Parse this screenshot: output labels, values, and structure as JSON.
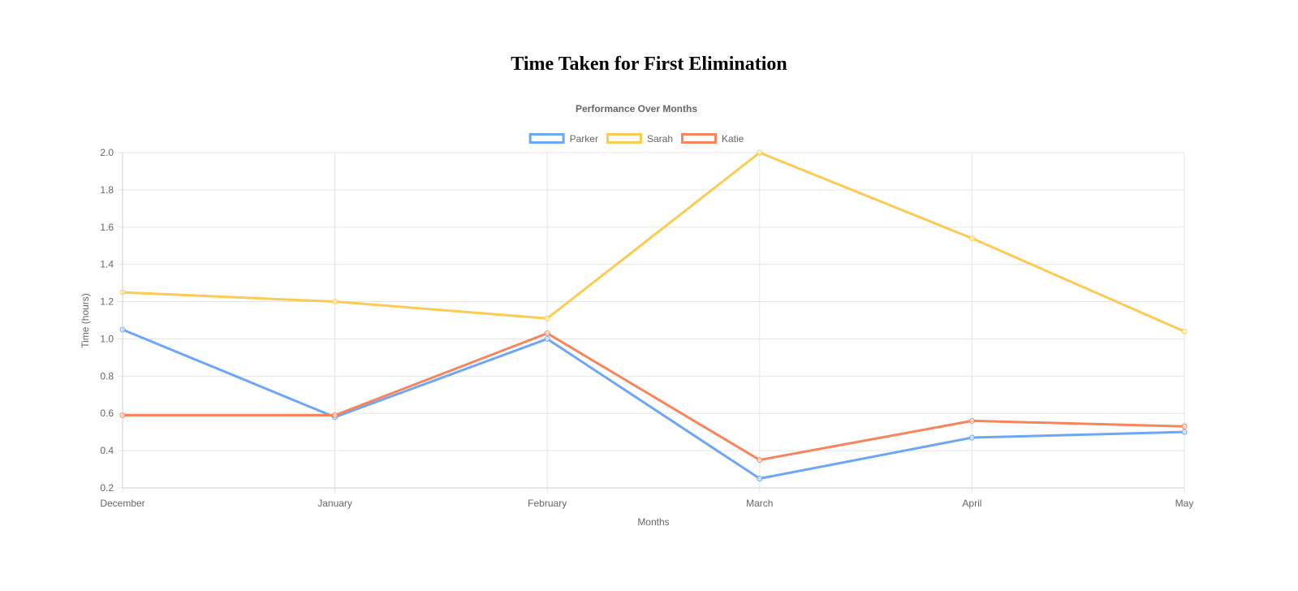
{
  "page": {
    "title": "Time Taken for First Elimination"
  },
  "chart_data": {
    "type": "line",
    "subtitle": "Performance Over Months",
    "xlabel": "Months",
    "ylabel": "Time (hours)",
    "categories": [
      "December",
      "January",
      "February",
      "March",
      "April",
      "May"
    ],
    "ylim": [
      0.2,
      2.0
    ],
    "yticks": [
      "2.0",
      "1.8",
      "1.6",
      "1.4",
      "1.2",
      "1.0",
      "0.8",
      "0.6",
      "0.4",
      "0.2"
    ],
    "grid": true,
    "legend_position": "top-center",
    "series": [
      {
        "name": "Parker",
        "color": "#6ea6f7",
        "values": [
          1.05,
          0.58,
          1.0,
          0.25,
          0.47,
          0.5
        ]
      },
      {
        "name": "Sarah",
        "color": "#fccb52",
        "values": [
          1.25,
          1.2,
          1.11,
          2.0,
          1.54,
          1.04
        ]
      },
      {
        "name": "Katie",
        "color": "#f7845a",
        "values": [
          0.59,
          0.59,
          1.03,
          0.35,
          0.56,
          0.53
        ]
      }
    ]
  }
}
